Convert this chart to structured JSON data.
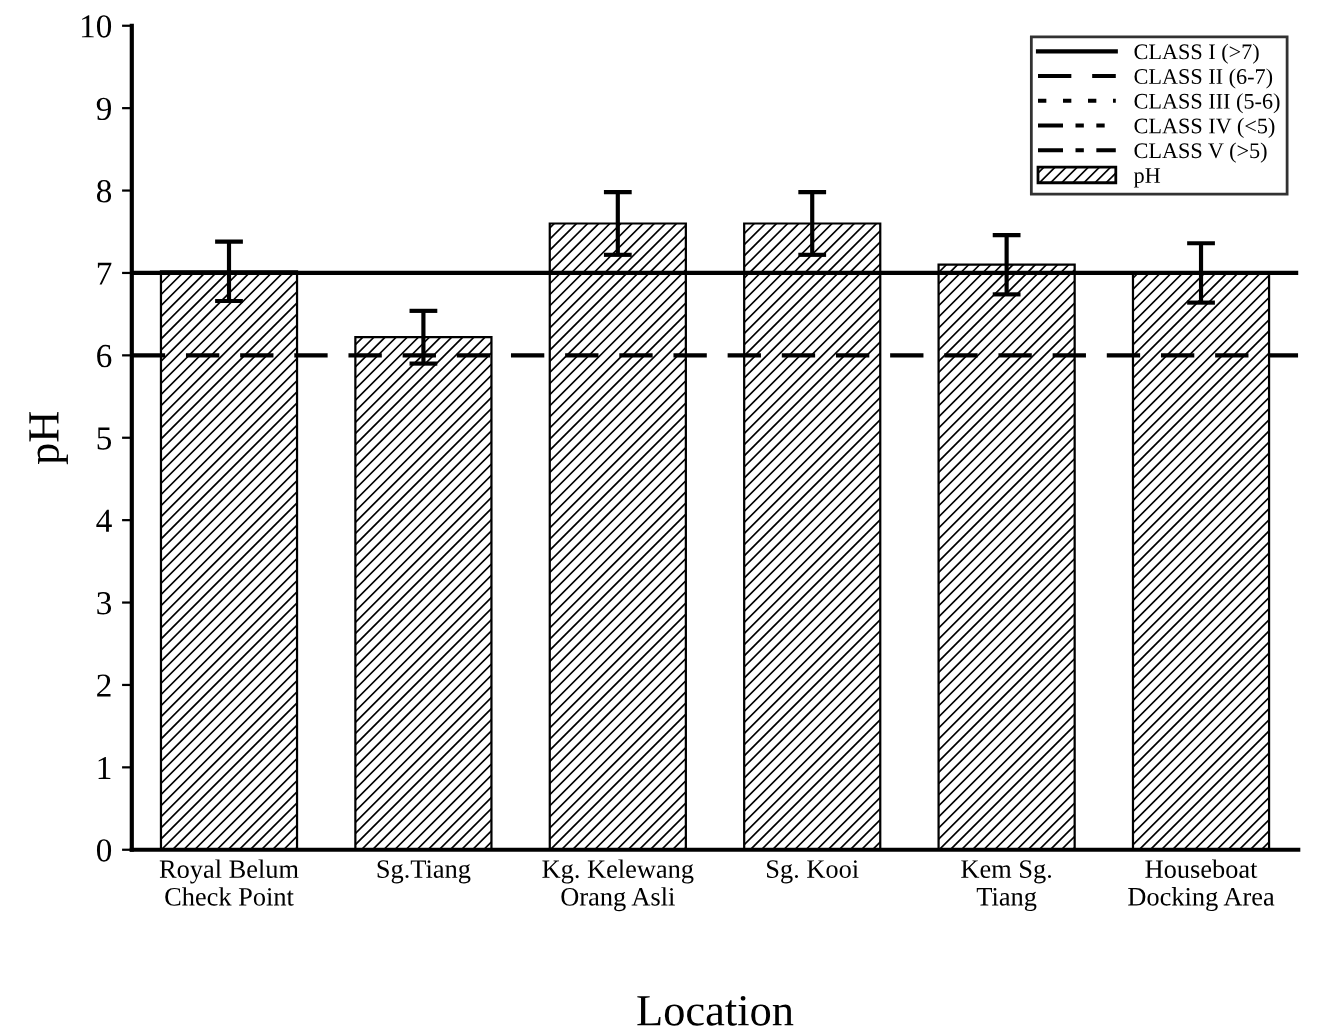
{
  "chart_data": {
    "type": "bar",
    "xlabel": "Location",
    "ylabel": "pH",
    "categories": [
      "Royal Belum\nCheck Point",
      "Sg.Tiang",
      "Kg. Kelewang\nOrang Asli",
      "Sg. Kooi",
      "Kem Sg.\nTiang",
      "Houseboat\nDocking Area"
    ],
    "series": [
      {
        "name": "pH",
        "color": "#000000",
        "values": [
          7.02,
          6.22,
          7.6,
          7.6,
          7.1,
          7.0
        ],
        "errors": [
          0.36,
          0.32,
          0.38,
          0.38,
          0.36,
          0.36
        ]
      }
    ],
    "ylim": [
      0,
      10
    ],
    "yticks": [
      0,
      1,
      2,
      3,
      4,
      5,
      6,
      7,
      8,
      9,
      10
    ],
    "ref_lines": [
      {
        "axis": "y",
        "value": 7,
        "label": "CLASS I (>7)",
        "line_style": "solid",
        "color": "#000000"
      },
      {
        "axis": "y",
        "value": 6,
        "label": "CLASS II (6-7)",
        "line_style": "dashed",
        "color": "#000000"
      },
      {
        "value": null,
        "label": "CLASS III (5-6)",
        "line_style": "dotted",
        "color": "#000000"
      },
      {
        "value": null,
        "label": "CLASS IV (<5)",
        "line_style": "dashdotdot",
        "color": "#000000"
      },
      {
        "value": null,
        "label": "CLASS V (>5)",
        "line_style": "dashdot",
        "color": "#000000"
      }
    ],
    "legend": "top right",
    "grid": false
  }
}
